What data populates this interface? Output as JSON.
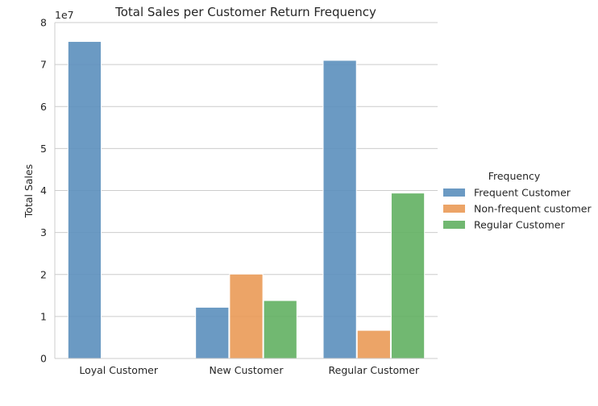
{
  "chart_data": {
    "type": "bar",
    "title": "Total Sales per Customer Return Frequency",
    "xlabel": "",
    "ylabel": "Total Sales",
    "y_offset_label": "1e7",
    "y_scale": 10000000,
    "ylim": [
      0,
      80000000
    ],
    "yticks": [
      0,
      10000000,
      20000000,
      30000000,
      40000000,
      50000000,
      60000000,
      70000000,
      80000000
    ],
    "ytick_labels": [
      "0",
      "1",
      "2",
      "3",
      "4",
      "5",
      "6",
      "7",
      "8"
    ],
    "grid": "horizontal",
    "legend_position": "right",
    "legend_title": "Frequency",
    "categories": [
      "Loyal Customer",
      "New Customer",
      "Regular Customer"
    ],
    "series": [
      {
        "name": "Frequent Customer",
        "color": "#5b8fbd",
        "values": [
          75500000,
          12200000,
          71000000
        ]
      },
      {
        "name": "Non-frequent customer",
        "color": "#ea9a56",
        "values": [
          0,
          20100000,
          6700000
        ]
      },
      {
        "name": "Regular Customer",
        "color": "#62b062",
        "values": [
          0,
          13800000,
          39400000
        ]
      }
    ]
  }
}
